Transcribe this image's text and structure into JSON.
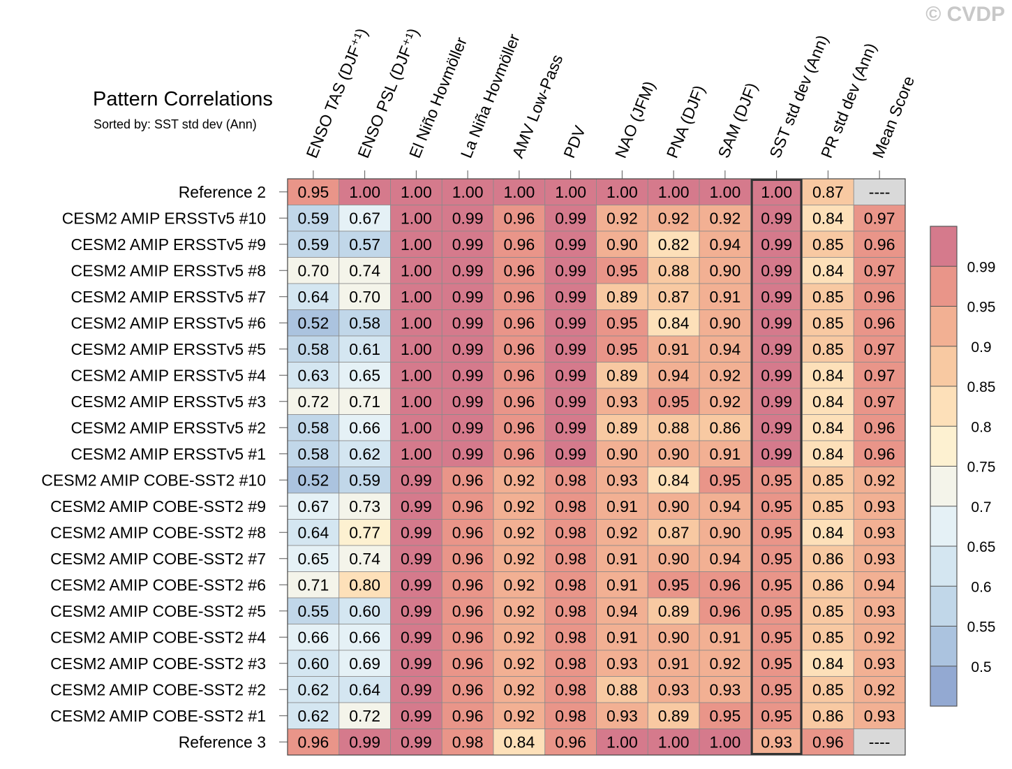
{
  "title": "Pattern Correlations",
  "subtitle": "Sorted by: SST std dev (Ann)",
  "watermark": "© CVDP",
  "chart_data": {
    "type": "heatmap",
    "title": "Pattern Correlations",
    "subtitle": "Sorted by: SST std dev (Ann)",
    "columns": [
      "ENSO TAS (DJF⁺¹)",
      "ENSO PSL (DJF⁺¹)",
      "El Niño Hovmöller",
      "La Niña Hovmöller",
      "AMV Low-Pass",
      "PDV",
      "NAO (JFM)",
      "PNA (DJF)",
      "SAM (DJF)",
      "SST std dev (Ann)",
      "PR std dev (Ann)",
      "Mean Score"
    ],
    "highlighted_column": "SST std dev (Ann)",
    "rows": [
      {
        "label": "Reference 2",
        "values": [
          "0.95",
          "1.00",
          "1.00",
          "1.00",
          "1.00",
          "1.00",
          "1.00",
          "1.00",
          "1.00",
          "1.00",
          "0.87",
          "----"
        ]
      },
      {
        "label": "CESM2 AMIP ERSSTv5 #10",
        "values": [
          "0.59",
          "0.67",
          "1.00",
          "0.99",
          "0.96",
          "0.99",
          "0.92",
          "0.92",
          "0.92",
          "0.99",
          "0.84",
          "0.97"
        ]
      },
      {
        "label": "CESM2 AMIP ERSSTv5 #9",
        "values": [
          "0.59",
          "0.57",
          "1.00",
          "0.99",
          "0.96",
          "0.99",
          "0.90",
          "0.82",
          "0.94",
          "0.99",
          "0.85",
          "0.96"
        ]
      },
      {
        "label": "CESM2 AMIP ERSSTv5 #8",
        "values": [
          "0.70",
          "0.74",
          "1.00",
          "0.99",
          "0.96",
          "0.99",
          "0.95",
          "0.88",
          "0.90",
          "0.99",
          "0.84",
          "0.97"
        ]
      },
      {
        "label": "CESM2 AMIP ERSSTv5 #7",
        "values": [
          "0.64",
          "0.70",
          "1.00",
          "0.99",
          "0.96",
          "0.99",
          "0.89",
          "0.87",
          "0.91",
          "0.99",
          "0.85",
          "0.96"
        ]
      },
      {
        "label": "CESM2 AMIP ERSSTv5 #6",
        "values": [
          "0.52",
          "0.58",
          "1.00",
          "0.99",
          "0.96",
          "0.99",
          "0.95",
          "0.84",
          "0.90",
          "0.99",
          "0.85",
          "0.96"
        ]
      },
      {
        "label": "CESM2 AMIP ERSSTv5 #5",
        "values": [
          "0.58",
          "0.61",
          "1.00",
          "0.99",
          "0.96",
          "0.99",
          "0.95",
          "0.91",
          "0.94",
          "0.99",
          "0.85",
          "0.97"
        ]
      },
      {
        "label": "CESM2 AMIP ERSSTv5 #4",
        "values": [
          "0.63",
          "0.65",
          "1.00",
          "0.99",
          "0.96",
          "0.99",
          "0.89",
          "0.94",
          "0.92",
          "0.99",
          "0.84",
          "0.97"
        ]
      },
      {
        "label": "CESM2 AMIP ERSSTv5 #3",
        "values": [
          "0.72",
          "0.71",
          "1.00",
          "0.99",
          "0.96",
          "0.99",
          "0.93",
          "0.95",
          "0.92",
          "0.99",
          "0.84",
          "0.97"
        ]
      },
      {
        "label": "CESM2 AMIP ERSSTv5 #2",
        "values": [
          "0.58",
          "0.66",
          "1.00",
          "0.99",
          "0.96",
          "0.99",
          "0.89",
          "0.88",
          "0.86",
          "0.99",
          "0.84",
          "0.96"
        ]
      },
      {
        "label": "CESM2 AMIP ERSSTv5 #1",
        "values": [
          "0.58",
          "0.62",
          "1.00",
          "0.99",
          "0.96",
          "0.99",
          "0.90",
          "0.90",
          "0.91",
          "0.99",
          "0.84",
          "0.96"
        ]
      },
      {
        "label": "CESM2 AMIP COBE-SST2 #10",
        "values": [
          "0.52",
          "0.59",
          "0.99",
          "0.96",
          "0.92",
          "0.98",
          "0.93",
          "0.84",
          "0.95",
          "0.95",
          "0.85",
          "0.92"
        ]
      },
      {
        "label": "CESM2 AMIP COBE-SST2 #9",
        "values": [
          "0.67",
          "0.73",
          "0.99",
          "0.96",
          "0.92",
          "0.98",
          "0.91",
          "0.90",
          "0.94",
          "0.95",
          "0.85",
          "0.93"
        ]
      },
      {
        "label": "CESM2 AMIP COBE-SST2 #8",
        "values": [
          "0.64",
          "0.77",
          "0.99",
          "0.96",
          "0.92",
          "0.98",
          "0.92",
          "0.87",
          "0.90",
          "0.95",
          "0.84",
          "0.93"
        ]
      },
      {
        "label": "CESM2 AMIP COBE-SST2 #7",
        "values": [
          "0.65",
          "0.74",
          "0.99",
          "0.96",
          "0.92",
          "0.98",
          "0.91",
          "0.90",
          "0.94",
          "0.95",
          "0.86",
          "0.93"
        ]
      },
      {
        "label": "CESM2 AMIP COBE-SST2 #6",
        "values": [
          "0.71",
          "0.80",
          "0.99",
          "0.96",
          "0.92",
          "0.98",
          "0.91",
          "0.95",
          "0.96",
          "0.95",
          "0.86",
          "0.94"
        ]
      },
      {
        "label": "CESM2 AMIP COBE-SST2 #5",
        "values": [
          "0.55",
          "0.60",
          "0.99",
          "0.96",
          "0.92",
          "0.98",
          "0.94",
          "0.89",
          "0.96",
          "0.95",
          "0.85",
          "0.93"
        ]
      },
      {
        "label": "CESM2 AMIP COBE-SST2 #4",
        "values": [
          "0.66",
          "0.66",
          "0.99",
          "0.96",
          "0.92",
          "0.98",
          "0.91",
          "0.90",
          "0.91",
          "0.95",
          "0.85",
          "0.92"
        ]
      },
      {
        "label": "CESM2 AMIP COBE-SST2 #3",
        "values": [
          "0.60",
          "0.69",
          "0.99",
          "0.96",
          "0.92",
          "0.98",
          "0.93",
          "0.91",
          "0.92",
          "0.95",
          "0.84",
          "0.93"
        ]
      },
      {
        "label": "CESM2 AMIP COBE-SST2 #2",
        "values": [
          "0.62",
          "0.64",
          "0.99",
          "0.96",
          "0.92",
          "0.98",
          "0.88",
          "0.93",
          "0.93",
          "0.95",
          "0.85",
          "0.92"
        ]
      },
      {
        "label": "CESM2 AMIP COBE-SST2 #1",
        "values": [
          "0.62",
          "0.72",
          "0.99",
          "0.96",
          "0.92",
          "0.98",
          "0.93",
          "0.89",
          "0.95",
          "0.95",
          "0.86",
          "0.93"
        ]
      },
      {
        "label": "Reference 3",
        "values": [
          "0.96",
          "0.99",
          "0.99",
          "0.98",
          "0.84",
          "0.96",
          "1.00",
          "1.00",
          "1.00",
          "0.93",
          "0.96",
          "----"
        ]
      }
    ],
    "colorbar": {
      "levels": [
        "0.5",
        "0.55",
        "0.6",
        "0.65",
        "0.7",
        "0.75",
        "0.8",
        "0.85",
        "0.9",
        "0.95",
        "0.99"
      ],
      "colors": [
        "#93a9d2",
        "#abc3df",
        "#c1d7e9",
        "#d4e6f1",
        "#e5f1f6",
        "#f4f4ea",
        "#fdf1d1",
        "#fde0b9",
        "#f8c9a2",
        "#f2b093",
        "#e99589",
        "#d57a8c"
      ],
      "missing_color": "#d9d9d9"
    }
  }
}
